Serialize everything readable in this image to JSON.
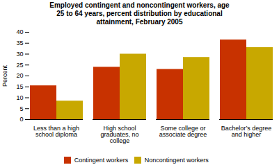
{
  "chart_data": {
    "type": "bar",
    "title": "Employed contingent and noncontingent workers, age\n25 to 64 years, percent distribution by educational\nattainment, February 2005",
    "categories": [
      "Less than a high\nschool diploma",
      "High school\ngraduates, no\ncollege",
      "Some college or\nassociate degree",
      "Bachelor’s degree\nand higher"
    ],
    "series": [
      {
        "name": "Contingent workers",
        "color": "#C83200",
        "values": [
          15.5,
          24.0,
          23.0,
          36.5
        ]
      },
      {
        "name": "Noncontingent workers",
        "color": "#C8A800",
        "values": [
          8.5,
          30.0,
          28.5,
          33.0
        ]
      }
    ],
    "ylabel": "Percent",
    "ylim": [
      0,
      40
    ],
    "yticks": [
      0,
      5,
      10,
      15,
      20,
      25,
      30,
      35,
      40
    ],
    "grid": false,
    "legend": "bottom"
  }
}
